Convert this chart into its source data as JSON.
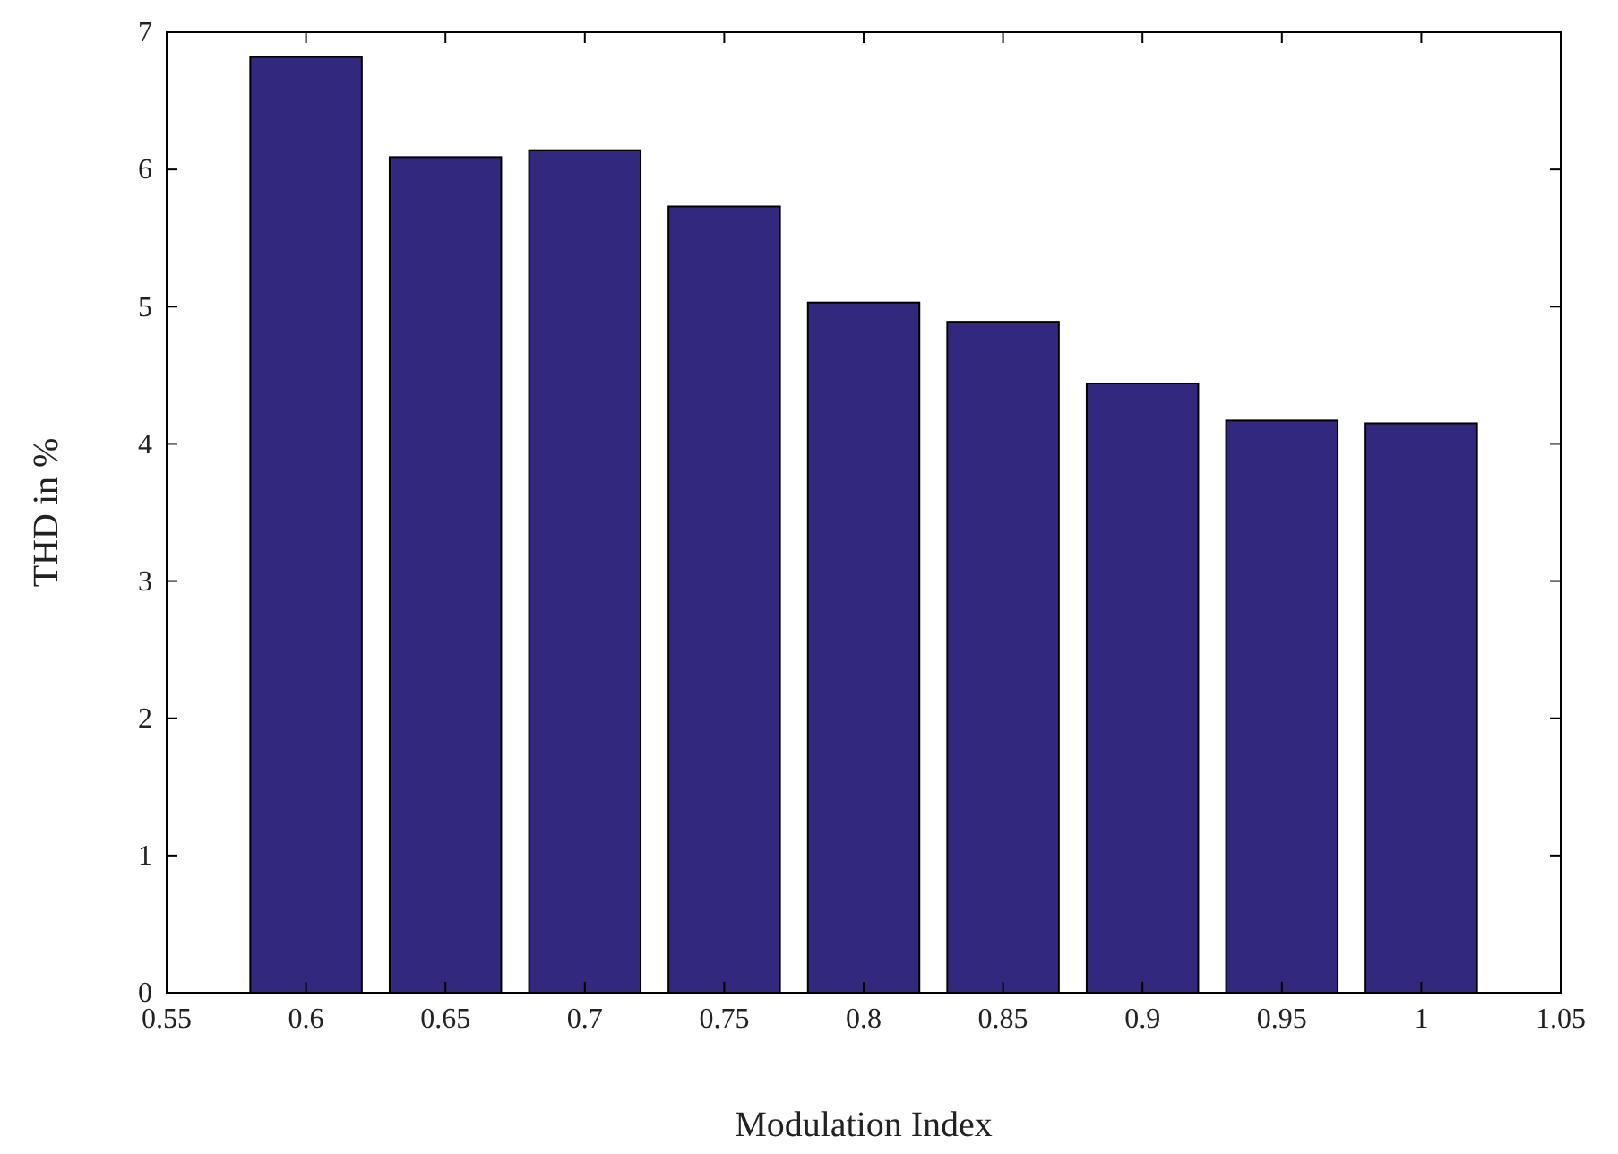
{
  "chart_data": {
    "type": "bar",
    "xlabel": "Modulation Index",
    "ylabel": "THD in %",
    "x": [
      0.6,
      0.65,
      0.7,
      0.75,
      0.8,
      0.85,
      0.9,
      0.95,
      1
    ],
    "values": [
      6.82,
      6.09,
      6.14,
      5.73,
      5.03,
      4.89,
      4.44,
      4.17,
      4.15
    ],
    "color": "#32297f",
    "xlim": [
      0.55,
      1.05
    ],
    "xticks": [
      0.55,
      0.6,
      0.65,
      0.7,
      0.75,
      0.8,
      0.85,
      0.9,
      0.95,
      1,
      1.05
    ],
    "ylim": [
      0,
      7
    ],
    "yticks": [
      0,
      1,
      2,
      3,
      4,
      5,
      6,
      7
    ],
    "grid": false
  }
}
